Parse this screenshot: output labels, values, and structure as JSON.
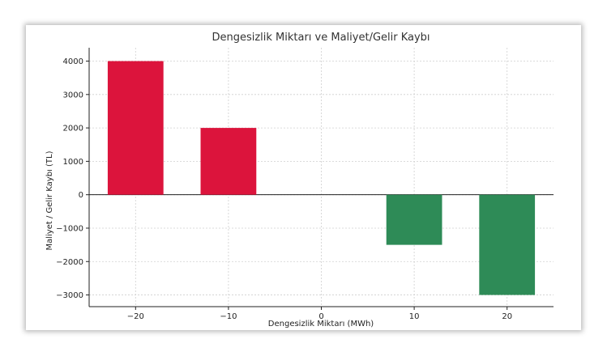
{
  "chart_data": {
    "type": "bar",
    "title": "Dengesizlik Miktarı ve Maliyet/Gelir Kaybı",
    "xlabel": "Dengesizlik Miktarı (MWh)",
    "ylabel": "Maliyet / Gelir Kaybı (TL)",
    "x": [
      -20,
      -10,
      0,
      10,
      20
    ],
    "values": [
      4000,
      2000,
      0,
      -1500,
      -3000
    ],
    "bar_colors": [
      "#dc143c",
      "#dc143c",
      "#dc143c",
      "#2e8b57",
      "#2e8b57"
    ],
    "xlim": [
      -25,
      25
    ],
    "ylim": [
      -3350,
      4400
    ],
    "xticks": [
      -20,
      -10,
      0,
      10,
      20
    ],
    "xtick_labels": [
      "−20",
      "−10",
      "0",
      "10",
      "20"
    ],
    "yticks": [
      -3000,
      -2000,
      -1000,
      0,
      1000,
      2000,
      3000,
      4000
    ],
    "ytick_labels": [
      "−3000",
      "−2000",
      "−1000",
      "0",
      "1000",
      "2000",
      "3000",
      "4000"
    ],
    "grid": true,
    "zero_line": true,
    "bar_width": 6
  }
}
